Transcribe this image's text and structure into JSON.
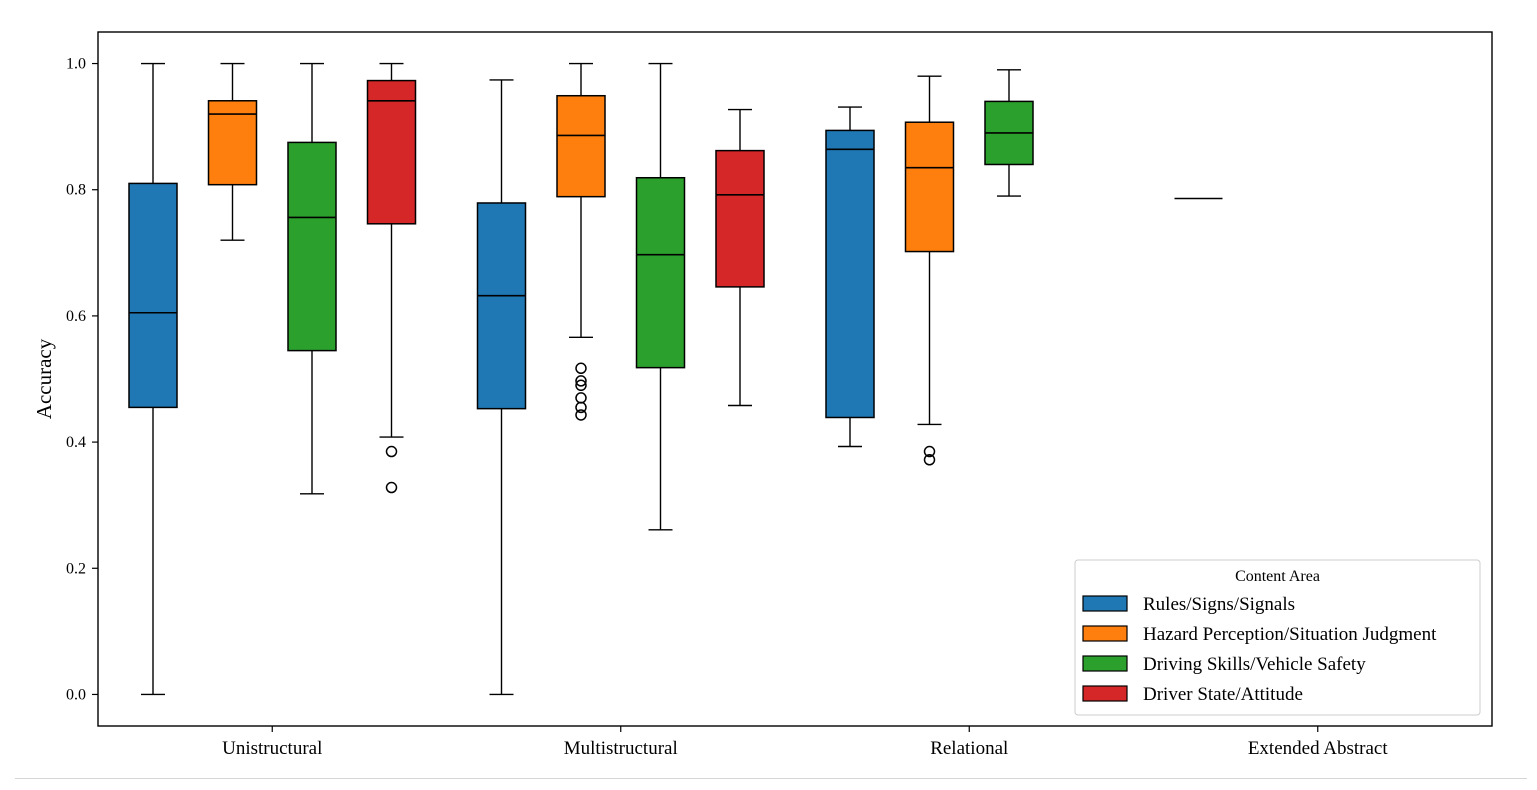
{
  "chart_data": {
    "type": "boxplot",
    "title": "",
    "xlabel": "",
    "ylabel": "Accuracy",
    "ylim": [
      -0.05,
      1.05
    ],
    "yticks": [
      "0.0",
      "0.2",
      "0.4",
      "0.6",
      "0.8",
      "1.0"
    ],
    "categories": [
      "Unistructural",
      "Multistructural",
      "Relational",
      "Extended Abstract"
    ],
    "legend": {
      "title": "Content Area",
      "placement": "lower right"
    },
    "grid": false,
    "series": [
      {
        "name": "Rules/Signs/Signals",
        "color": "#1f77b4",
        "boxes": [
          {
            "category": "Unistructural",
            "whisker_low": 0.0,
            "q1": 0.455,
            "median": 0.605,
            "q3": 0.81,
            "whisker_high": 1.0,
            "outliers": []
          },
          {
            "category": "Multistructural",
            "whisker_low": 0.0,
            "q1": 0.453,
            "median": 0.632,
            "q3": 0.779,
            "whisker_high": 0.974,
            "outliers": []
          },
          {
            "category": "Relational",
            "whisker_low": 0.393,
            "q1": 0.439,
            "median": 0.864,
            "q3": 0.894,
            "whisker_high": 0.931,
            "outliers": []
          },
          {
            "category": "Extended Abstract",
            "whisker_low": 0.786,
            "q1": 0.786,
            "median": 0.786,
            "q3": 0.786,
            "whisker_high": 0.786,
            "outliers": []
          }
        ]
      },
      {
        "name": "Hazard Perception/Situation Judgment",
        "color": "#ff7f0e",
        "boxes": [
          {
            "category": "Unistructural",
            "whisker_low": 0.72,
            "q1": 0.808,
            "median": 0.92,
            "q3": 0.941,
            "whisker_high": 1.0,
            "outliers": []
          },
          {
            "category": "Multistructural",
            "whisker_low": 0.566,
            "q1": 0.789,
            "median": 0.886,
            "q3": 0.949,
            "whisker_high": 1.0,
            "outliers": [
              0.517,
              0.497,
              0.49,
              0.47,
              0.455,
              0.443
            ]
          },
          {
            "category": "Relational",
            "whisker_low": 0.428,
            "q1": 0.702,
            "median": 0.835,
            "q3": 0.907,
            "whisker_high": 0.98,
            "outliers": [
              0.385,
              0.372
            ]
          }
        ]
      },
      {
        "name": "Driving Skills/Vehicle Safety",
        "color": "#2ca02c",
        "boxes": [
          {
            "category": "Unistructural",
            "whisker_low": 0.318,
            "q1": 0.545,
            "median": 0.756,
            "q3": 0.875,
            "whisker_high": 1.0,
            "outliers": []
          },
          {
            "category": "Multistructural",
            "whisker_low": 0.261,
            "q1": 0.518,
            "median": 0.697,
            "q3": 0.819,
            "whisker_high": 1.0,
            "outliers": []
          },
          {
            "category": "Relational",
            "whisker_low": 0.79,
            "q1": 0.84,
            "median": 0.89,
            "q3": 0.94,
            "whisker_high": 0.99,
            "outliers": []
          }
        ]
      },
      {
        "name": "Driver State/Attitude",
        "color": "#d62728",
        "boxes": [
          {
            "category": "Unistructural",
            "whisker_low": 0.408,
            "q1": 0.746,
            "median": 0.941,
            "q3": 0.973,
            "whisker_high": 1.0,
            "outliers": [
              0.385,
              0.328
            ]
          },
          {
            "category": "Multistructural",
            "whisker_low": 0.458,
            "q1": 0.646,
            "median": 0.792,
            "q3": 0.862,
            "whisker_high": 0.927,
            "outliers": []
          }
        ]
      }
    ]
  }
}
